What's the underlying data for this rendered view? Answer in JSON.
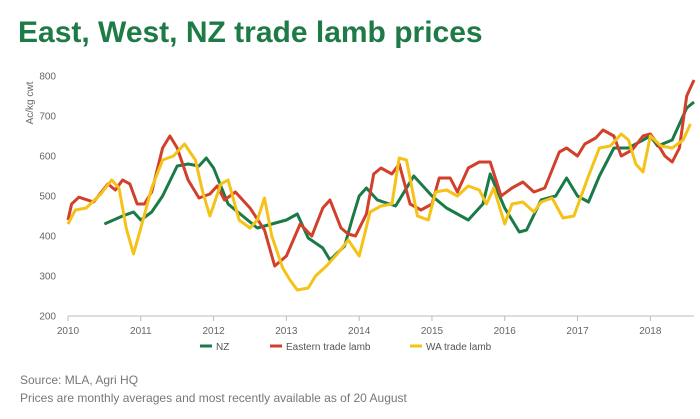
{
  "chart_data": {
    "type": "line",
    "title": "East, West, NZ trade lamb prices",
    "y_label": "Ac/kg cwt",
    "source": "Source: MLA, Agri HQ",
    "note": "Prices are monthly averages and most recently available as of 20 August",
    "xlim": [
      2010,
      2018.6
    ],
    "xticks": [
      2010,
      2011,
      2012,
      2013,
      2014,
      2015,
      2016,
      2017,
      2018
    ],
    "ylim": [
      200,
      800
    ],
    "yticks": [
      200,
      300,
      400,
      500,
      600,
      700,
      800
    ],
    "grid": false,
    "legend": "bottom",
    "series": [
      {
        "name": "NZ",
        "color": "#1a7a48",
        "x": [
          2010.5,
          2010.75,
          2010.9,
          2011.0,
          2011.15,
          2011.3,
          2011.5,
          2011.65,
          2011.8,
          2011.9,
          2012.0,
          2012.2,
          2012.4,
          2012.6,
          2012.8,
          2013.0,
          2013.15,
          2013.3,
          2013.5,
          2013.6,
          2013.8,
          2013.9,
          2014.0,
          2014.1,
          2014.25,
          2014.5,
          2014.75,
          2014.9,
          2015.0,
          2015.2,
          2015.5,
          2015.7,
          2015.8,
          2016.0,
          2016.2,
          2016.3,
          2016.5,
          2016.7,
          2016.85,
          2017.0,
          2017.15,
          2017.3,
          2017.5,
          2017.7,
          2017.9,
          2018.0,
          2018.1,
          2018.3,
          2018.5,
          2018.6
        ],
        "values": [
          430,
          450,
          460,
          440,
          460,
          500,
          575,
          580,
          575,
          595,
          570,
          480,
          450,
          420,
          430,
          440,
          455,
          395,
          370,
          340,
          375,
          440,
          500,
          520,
          490,
          475,
          550,
          520,
          500,
          470,
          440,
          480,
          555,
          470,
          410,
          415,
          490,
          500,
          545,
          500,
          485,
          550,
          620,
          620,
          640,
          650,
          625,
          640,
          720,
          735
        ]
      },
      {
        "name": "Eastern trade lamb",
        "color": "#d2402b",
        "x": [
          2010.0,
          2010.05,
          2010.15,
          2010.35,
          2010.55,
          2010.65,
          2010.75,
          2010.85,
          2010.95,
          2011.05,
          2011.15,
          2011.3,
          2011.4,
          2011.5,
          2011.65,
          2011.8,
          2011.95,
          2012.05,
          2012.15,
          2012.3,
          2012.5,
          2012.7,
          2012.84,
          2013.0,
          2013.19,
          2013.35,
          2013.5,
          2013.6,
          2013.75,
          2013.85,
          2013.95,
          2014.1,
          2014.2,
          2014.3,
          2014.45,
          2014.55,
          2014.7,
          2014.85,
          2015.0,
          2015.1,
          2015.25,
          2015.35,
          2015.5,
          2015.65,
          2015.8,
          2015.95,
          2016.1,
          2016.25,
          2016.4,
          2016.55,
          2016.75,
          2016.85,
          2017.0,
          2017.1,
          2017.25,
          2017.35,
          2017.5,
          2017.6,
          2017.75,
          2017.9,
          2018.0,
          2018.1,
          2018.2,
          2018.3,
          2018.4,
          2018.5,
          2018.6
        ],
        "values": [
          440,
          480,
          497,
          485,
          530,
          515,
          540,
          530,
          480,
          480,
          510,
          620,
          650,
          620,
          540,
          495,
          505,
          525,
          490,
          510,
          470,
          415,
          325,
          350,
          430,
          400,
          470,
          490,
          420,
          405,
          400,
          455,
          555,
          570,
          555,
          580,
          480,
          465,
          480,
          545,
          545,
          510,
          570,
          585,
          585,
          500,
          520,
          535,
          510,
          520,
          610,
          620,
          600,
          630,
          645,
          665,
          650,
          600,
          615,
          650,
          655,
          630,
          600,
          585,
          620,
          750,
          790
        ]
      },
      {
        "name": "WA trade lamb",
        "color": "#f5c218",
        "x": [
          2010.0,
          2010.1,
          2010.25,
          2010.45,
          2010.6,
          2010.7,
          2010.8,
          2010.9,
          2011.0,
          2011.15,
          2011.3,
          2011.45,
          2011.6,
          2011.75,
          2011.85,
          2011.95,
          2012.1,
          2012.2,
          2012.35,
          2012.5,
          2012.6,
          2012.7,
          2012.8,
          2012.95,
          2013.05,
          2013.15,
          2013.3,
          2013.4,
          2013.55,
          2013.7,
          2013.85,
          2014.0,
          2014.15,
          2014.3,
          2014.45,
          2014.55,
          2014.65,
          2014.8,
          2014.95,
          2015.05,
          2015.2,
          2015.35,
          2015.5,
          2015.65,
          2015.75,
          2015.85,
          2016.0,
          2016.1,
          2016.25,
          2016.4,
          2016.5,
          2016.65,
          2016.8,
          2016.95,
          2017.05,
          2017.15,
          2017.3,
          2017.45,
          2017.6,
          2017.7,
          2017.8,
          2017.9,
          2018.0,
          2018.15,
          2018.3,
          2018.45,
          2018.55
        ],
        "values": [
          430,
          465,
          470,
          505,
          540,
          520,
          420,
          355,
          420,
          520,
          590,
          600,
          630,
          590,
          510,
          450,
          530,
          540,
          440,
          420,
          440,
          495,
          400,
          320,
          290,
          265,
          270,
          300,
          325,
          355,
          390,
          350,
          460,
          475,
          480,
          595,
          590,
          450,
          440,
          510,
          515,
          500,
          525,
          515,
          480,
          520,
          430,
          480,
          485,
          460,
          485,
          495,
          445,
          450,
          500,
          550,
          620,
          625,
          655,
          640,
          580,
          560,
          650,
          625,
          620,
          640,
          680
        ]
      }
    ]
  }
}
